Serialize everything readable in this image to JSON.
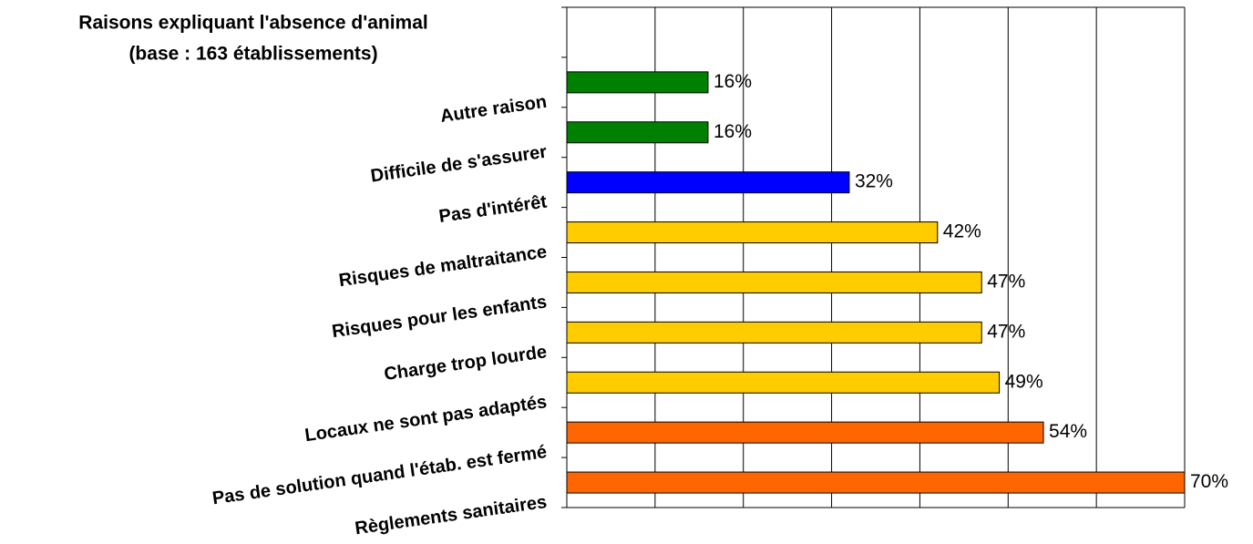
{
  "chart_data": {
    "type": "bar",
    "orientation": "horizontal",
    "title": "Raisons expliquant l'absence d'animal",
    "subtitle": "(base : 163 établissements)",
    "categories": [
      "Autre raison",
      "Difficile de s'assurer",
      "Pas d'intérêt",
      "Risques de maltraitance",
      "Risques pour les enfants",
      "Charge trop lourde",
      "Locaux ne sont pas adaptés",
      "Pas de solution quand l'étab. est fermé",
      "Règlements sanitaires"
    ],
    "values": [
      16,
      16,
      32,
      42,
      47,
      47,
      49,
      54,
      70
    ],
    "value_labels": [
      "16%",
      "16%",
      "32%",
      "42%",
      "47%",
      "47%",
      "49%",
      "54%",
      "70%"
    ],
    "colors": [
      "#008000",
      "#008000",
      "#0000ff",
      "#ffcc00",
      "#ffcc00",
      "#ffcc00",
      "#ffcc00",
      "#ff6600",
      "#ff6600"
    ],
    "xlim": [
      0,
      70
    ],
    "xticks": [
      0,
      10,
      20,
      30,
      40,
      50,
      60,
      70
    ],
    "grid": true
  }
}
